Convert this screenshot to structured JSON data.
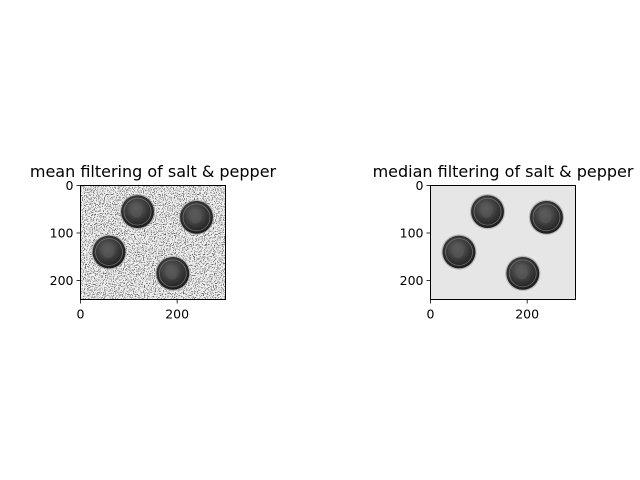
{
  "chart_data": [
    {
      "type": "image",
      "title": "mean filtering of salt & pepper",
      "xlim": [
        0,
        300
      ],
      "ylim": [
        240,
        0
      ],
      "xticks": [
        0,
        200
      ],
      "yticks": [
        0,
        100,
        200
      ],
      "xtick_labels": [
        "0",
        "200"
      ],
      "ytick_labels": [
        "0",
        "100",
        "200"
      ],
      "noise": "salt & pepper (mean filtered)",
      "colormap": "gray"
    },
    {
      "type": "image",
      "title": "median filtering of salt & pepper",
      "xlim": [
        0,
        300
      ],
      "ylim": [
        240,
        0
      ],
      "xticks": [
        0,
        200
      ],
      "yticks": [
        0,
        100,
        200
      ],
      "xtick_labels": [
        "0",
        "200"
      ],
      "ytick_labels": [
        "0",
        "100",
        "200"
      ],
      "noise": "clean (median filtered)",
      "colormap": "gray"
    }
  ],
  "coins": [
    {
      "x": 118,
      "y": 55,
      "r": 34
    },
    {
      "x": 240,
      "y": 67,
      "r": 34
    },
    {
      "x": 59,
      "y": 140,
      "r": 34
    },
    {
      "x": 191,
      "y": 185,
      "r": 34
    }
  ]
}
